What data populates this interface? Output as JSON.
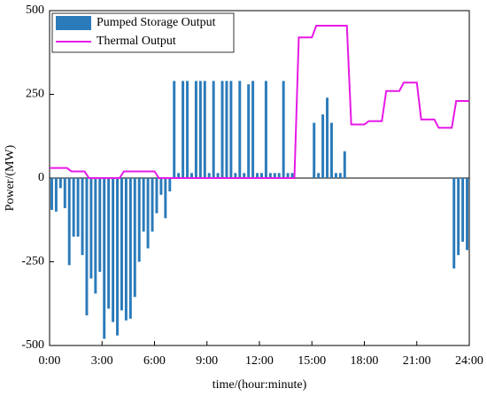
{
  "chart_data": {
    "type": "bar_line",
    "xlabel": "time/(hour:minute)",
    "ylabel": "Power/(MW)",
    "xlim": [
      0,
      24
    ],
    "ylim": [
      -500,
      500
    ],
    "xticks": [
      {
        "value": 0,
        "label": "0:00"
      },
      {
        "value": 3,
        "label": "3:00"
      },
      {
        "value": 6,
        "label": "6:00"
      },
      {
        "value": 9,
        "label": "9:00"
      },
      {
        "value": 12,
        "label": "12:00"
      },
      {
        "value": 15,
        "label": "15:00"
      },
      {
        "value": 18,
        "label": "18:00"
      },
      {
        "value": 21,
        "label": "21:00"
      },
      {
        "value": 24,
        "label": "24:00"
      }
    ],
    "yticks": [
      -500,
      -250,
      0,
      250,
      500
    ],
    "legend": "upper left",
    "series": [
      {
        "name": "Pumped Storage Output",
        "type": "bar",
        "color": "#2b7bba",
        "x": [
          0.125,
          0.375,
          0.625,
          0.875,
          1.125,
          1.375,
          1.625,
          1.875,
          2.125,
          2.375,
          2.625,
          2.875,
          3.125,
          3.375,
          3.625,
          3.875,
          4.125,
          4.375,
          4.625,
          4.875,
          5.125,
          5.375,
          5.625,
          5.875,
          6.125,
          6.375,
          6.625,
          6.875,
          7.125,
          7.375,
          7.625,
          7.875,
          8.125,
          8.375,
          8.625,
          8.875,
          9.125,
          9.375,
          9.625,
          9.875,
          10.125,
          10.375,
          10.625,
          10.875,
          11.125,
          11.375,
          11.625,
          11.875,
          12.125,
          12.375,
          12.625,
          12.875,
          13.125,
          13.375,
          13.625,
          13.875,
          14.125,
          14.375,
          14.625,
          14.875,
          15.125,
          15.375,
          15.625,
          15.875,
          16.125,
          16.375,
          16.625,
          16.875,
          17.125,
          17.375,
          17.625,
          17.875,
          18.125,
          18.375,
          18.625,
          18.875,
          19.125,
          19.375,
          19.625,
          19.875,
          20.125,
          20.375,
          20.625,
          20.875,
          21.125,
          21.375,
          21.625,
          21.875,
          22.125,
          22.375,
          22.625,
          22.875,
          23.125,
          23.375,
          23.625,
          23.875
        ],
        "values": [
          -95,
          -100,
          -30,
          -90,
          -260,
          -175,
          -175,
          -230,
          -410,
          -300,
          -345,
          -280,
          -480,
          -390,
          -430,
          -470,
          -395,
          -425,
          -420,
          -355,
          -250,
          -160,
          -210,
          -160,
          -105,
          -50,
          -120,
          -40,
          290,
          15,
          290,
          290,
          15,
          290,
          290,
          290,
          15,
          290,
          15,
          290,
          290,
          290,
          15,
          290,
          15,
          280,
          290,
          15,
          15,
          290,
          15,
          15,
          15,
          290,
          15,
          15,
          0,
          0,
          0,
          0,
          165,
          15,
          190,
          240,
          165,
          15,
          15,
          80,
          0,
          0,
          0,
          0,
          0,
          0,
          0,
          0,
          0,
          0,
          0,
          0,
          0,
          0,
          0,
          0,
          0,
          0,
          0,
          0,
          0,
          0,
          0,
          0,
          -270,
          -230,
          -190,
          -215
        ]
      },
      {
        "name": "Thermal Output",
        "type": "line",
        "color": "#e619e6",
        "x": [
          0,
          1,
          1.25,
          2,
          2.25,
          4,
          4.25,
          6,
          6.25,
          14,
          14.25,
          15,
          15.25,
          17,
          17.25,
          18,
          18.25,
          19,
          19.25,
          20,
          20.25,
          21,
          21.25,
          22,
          22.25,
          23,
          23.25,
          24
        ],
        "values": [
          30,
          30,
          20,
          20,
          0,
          0,
          20,
          20,
          0,
          0,
          420,
          420,
          455,
          455,
          160,
          160,
          170,
          170,
          260,
          260,
          285,
          285,
          175,
          175,
          150,
          150,
          230,
          230
        ]
      }
    ]
  }
}
